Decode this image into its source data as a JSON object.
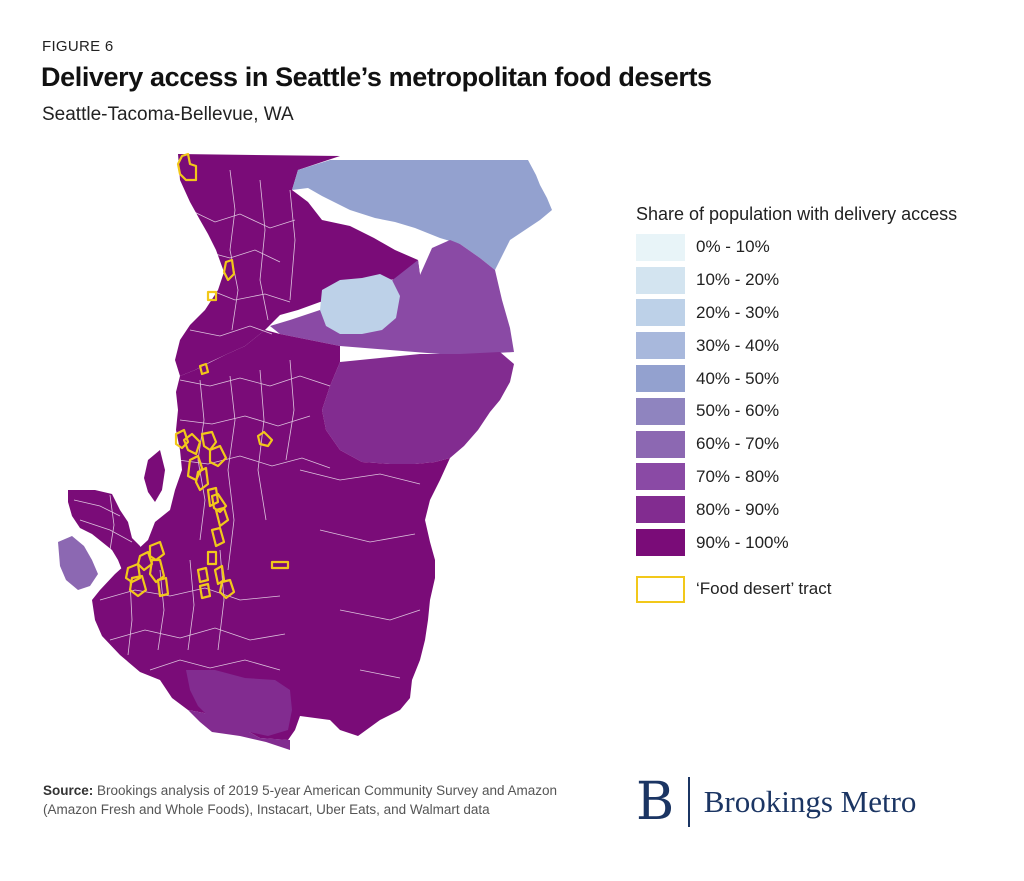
{
  "figure_label": "FIGURE 6",
  "title": "Delivery access in Seattle’s metropolitan food deserts",
  "subtitle": "Seattle-Tacoma-Bellevue, WA",
  "legend": {
    "title": "Share of population with delivery access",
    "bins": [
      {
        "label": "0% - 10%",
        "color": "#e8f4f8"
      },
      {
        "label": "10% - 20%",
        "color": "#d3e4f0"
      },
      {
        "label": "20% - 30%",
        "color": "#bdd1e8"
      },
      {
        "label": "30% - 40%",
        "color": "#a8b8dc"
      },
      {
        "label": "40% - 50%",
        "color": "#93a1cf"
      },
      {
        "label": "50% - 60%",
        "color": "#8f84bf"
      },
      {
        "label": "60% - 70%",
        "color": "#8c68b2"
      },
      {
        "label": "70% - 80%",
        "color": "#8a4aa5"
      },
      {
        "label": "80% - 90%",
        "color": "#822c90"
      },
      {
        "label": "90% - 100%",
        "color": "#7a0c78"
      }
    ],
    "food_desert_label": "‘Food desert’ tract",
    "food_desert_color": "#f2c81a"
  },
  "source": {
    "label": "Source:",
    "text": " Brookings analysis of 2019 5-year American Community Survey and Amazon (Amazon Fresh and Whole Foods), Instacart, Uber Eats, and Walmart data"
  },
  "brand": {
    "logo_letter": "B",
    "name": "Brookings Metro",
    "color": "#1b3563"
  }
}
